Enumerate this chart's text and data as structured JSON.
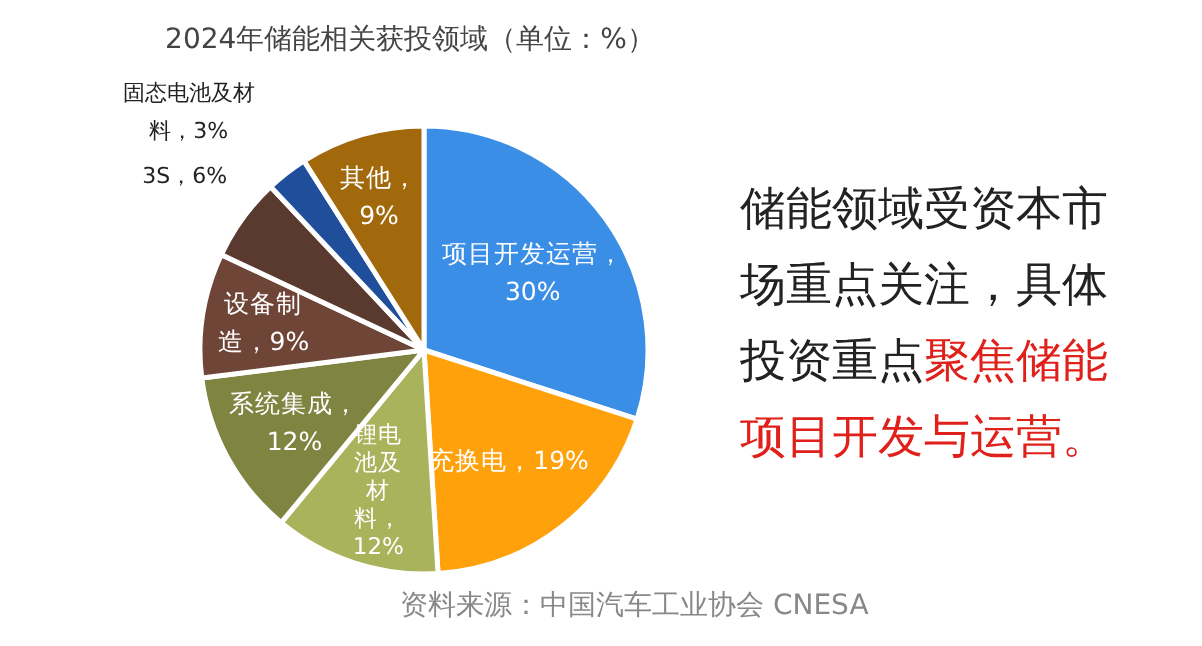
{
  "chart_data": {
    "type": "pie",
    "title": "2024年储能相关获投领域（单位：%）",
    "categories": [
      "项目开发运营",
      "充换电",
      "锂电池及材料",
      "系统集成",
      "设备制造",
      "3S",
      "固态电池及材料",
      "其他"
    ],
    "values": [
      30,
      19,
      12,
      12,
      9,
      6,
      3,
      9
    ],
    "value_labels": [
      "，30%",
      "，19%",
      "，12%",
      "，12%",
      "，9%",
      "，6%",
      "，3%",
      "，9%"
    ],
    "colors": [
      "#3a8ee6",
      "#ffa10a",
      "#a9b35c",
      "#7f8440",
      "#6e4536",
      "#5a3a2e",
      "#1f4f9a",
      "#a2690c"
    ],
    "annotations": [
      "储能领域受资本市场重点关注，具体投资重点",
      "聚焦储能项目开发与运营。",
      "资料来源：中国汽车工业协会 CNESA"
    ]
  }
}
